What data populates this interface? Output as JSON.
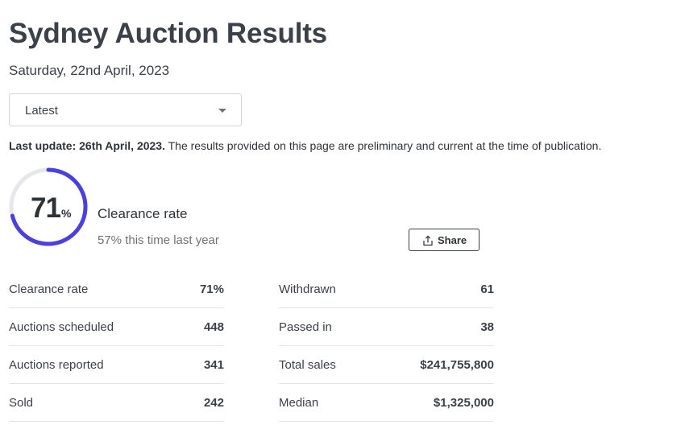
{
  "header": {
    "title": "Sydney Auction Results",
    "date": "Saturday, 22nd April, 2023"
  },
  "filter": {
    "selected": "Latest"
  },
  "update": {
    "label": "Last update: 26th April, 2023.",
    "note": " The results provided on this page are preliminary and current at the time of publication."
  },
  "clearance": {
    "value": "71",
    "unit": "%",
    "fraction": 0.71,
    "label": "Clearance rate",
    "compare": "57% this time last year",
    "ring_color": "#4a3fe0",
    "track_color": "#e6e7ea"
  },
  "share": {
    "label": "Share",
    "icon": "share-icon"
  },
  "stats_left": [
    {
      "label": "Clearance rate",
      "value": "71%"
    },
    {
      "label": "Auctions scheduled",
      "value": "448"
    },
    {
      "label": "Auctions reported",
      "value": "341"
    },
    {
      "label": "Sold",
      "value": "242"
    }
  ],
  "stats_right": [
    {
      "label": "Withdrawn",
      "value": "61"
    },
    {
      "label": "Passed in",
      "value": "38"
    },
    {
      "label": "Total sales",
      "value": "$241,755,800"
    },
    {
      "label": "Median",
      "value": "$1,325,000"
    }
  ]
}
